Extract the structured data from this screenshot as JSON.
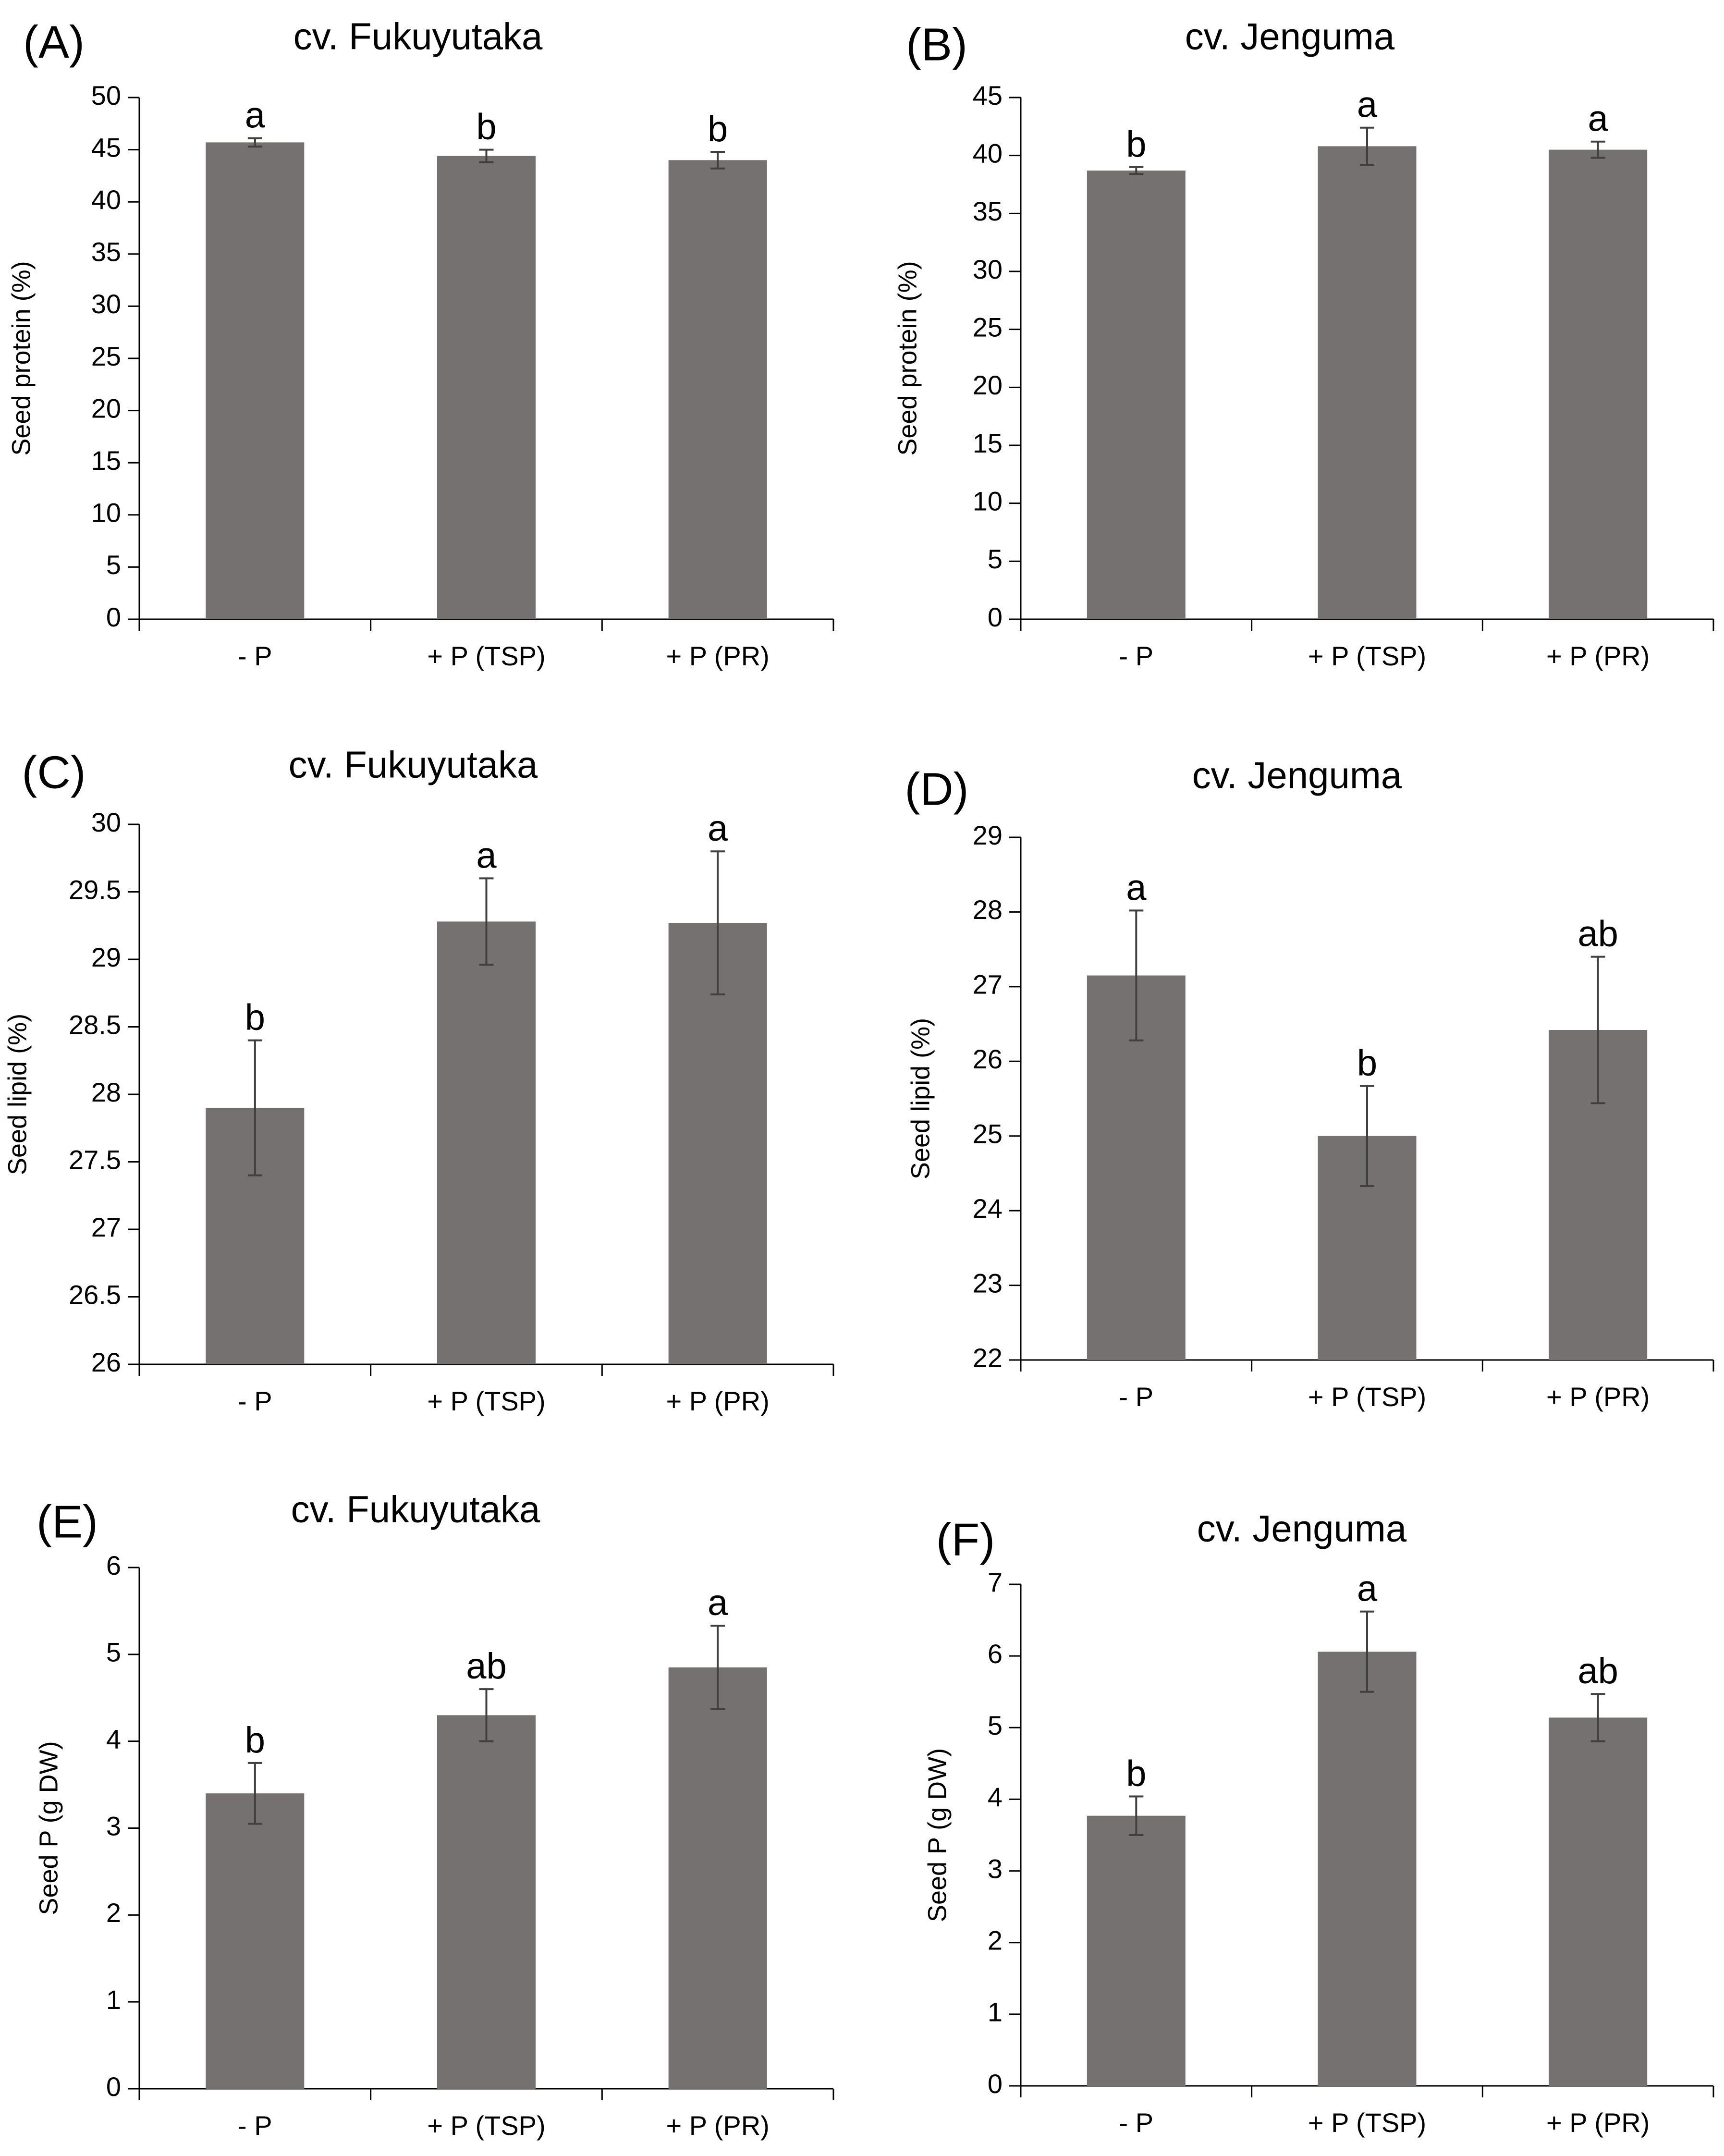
{
  "bar_color": "#767171",
  "axis_color": "#000000",
  "chart_data": [
    {
      "type": "bar",
      "panel_label": "(A)",
      "title": "cv. Fukuyutaka",
      "ylabel": "Seed protein (%)",
      "xlabel": "",
      "categories": [
        "- P",
        "+ P (TSP)",
        "+ P (PR)"
      ],
      "values": [
        45.7,
        44.4,
        44.0
      ],
      "errors": [
        0.4,
        0.6,
        0.8
      ],
      "letters": [
        "a",
        "b",
        "b"
      ],
      "ylim": [
        0,
        50
      ],
      "yticks": [
        0,
        5,
        10,
        15,
        20,
        25,
        30,
        35,
        40,
        45,
        50
      ],
      "ytick_labels": [
        "0",
        "5",
        "10",
        "15",
        "20",
        "25",
        "30",
        "35",
        "40",
        "45",
        "50"
      ]
    },
    {
      "type": "bar",
      "panel_label": "(B)",
      "title": "cv. Jenguma",
      "ylabel": "Seed protein (%)",
      "xlabel": "",
      "categories": [
        "- P",
        "+ P (TSP)",
        "+ P (PR)"
      ],
      "values": [
        38.7,
        40.8,
        40.5
      ],
      "errors": [
        0.3,
        1.6,
        0.7
      ],
      "letters": [
        "b",
        "a",
        "a"
      ],
      "ylim": [
        0,
        45
      ],
      "yticks": [
        0,
        5,
        10,
        15,
        20,
        25,
        30,
        35,
        40,
        45
      ],
      "ytick_labels": [
        "0",
        "5",
        "10",
        "15",
        "20",
        "25",
        "30",
        "35",
        "40",
        "45"
      ]
    },
    {
      "type": "bar",
      "panel_label": "(C)",
      "title": "cv. Fukuyutaka",
      "ylabel": "Seed lipid (%)",
      "xlabel": "",
      "categories": [
        "- P",
        "+ P (TSP)",
        "+ P (PR)"
      ],
      "values": [
        27.9,
        29.28,
        29.27
      ],
      "errors": [
        0.5,
        0.32,
        0.53
      ],
      "letters": [
        "b",
        "a",
        "a"
      ],
      "ylim": [
        26,
        30
      ],
      "yticks": [
        26,
        26.5,
        27,
        27.5,
        28,
        28.5,
        29,
        29.5,
        30
      ],
      "ytick_labels": [
        "26",
        "26.5",
        "27",
        "27.5",
        "28",
        "28.5",
        "29",
        "29.5",
        "30"
      ]
    },
    {
      "type": "bar",
      "panel_label": "(D)",
      "title": "cv. Jenguma",
      "ylabel": "Seed lipid (%)",
      "xlabel": "",
      "categories": [
        "- P",
        "+ P (TSP)",
        "+ P (PR)"
      ],
      "values": [
        27.15,
        25.0,
        26.42
      ],
      "errors": [
        0.87,
        0.67,
        0.98
      ],
      "letters": [
        "a",
        "b",
        "ab"
      ],
      "ylim": [
        22,
        29
      ],
      "yticks": [
        22,
        23,
        24,
        25,
        26,
        27,
        28,
        29
      ],
      "ytick_labels": [
        "22",
        "23",
        "24",
        "25",
        "26",
        "27",
        "28",
        "29"
      ]
    },
    {
      "type": "bar",
      "panel_label": "(E)",
      "title": "cv. Fukuyutaka",
      "ylabel": "Seed P (g DW)",
      "xlabel": "",
      "categories": [
        "- P",
        "+ P (TSP)",
        "+ P (PR)"
      ],
      "values": [
        3.4,
        4.3,
        4.85
      ],
      "errors": [
        0.35,
        0.3,
        0.48
      ],
      "letters": [
        "b",
        "ab",
        "a"
      ],
      "ylim": [
        0,
        6
      ],
      "yticks": [
        0,
        1,
        2,
        3,
        4,
        5,
        6
      ],
      "ytick_labels": [
        "0",
        "1",
        "2",
        "3",
        "4",
        "5",
        "6"
      ]
    },
    {
      "type": "bar",
      "panel_label": "(F)",
      "title": "cv. Jenguma",
      "ylabel": "Seed P (g DW)",
      "xlabel": "",
      "categories": [
        "- P",
        "+ P (TSP)",
        "+ P (PR)"
      ],
      "values": [
        3.77,
        6.06,
        5.14
      ],
      "errors": [
        0.27,
        0.56,
        0.33
      ],
      "letters": [
        "b",
        "a",
        "ab"
      ],
      "ylim": [
        0,
        7
      ],
      "yticks": [
        0,
        1,
        2,
        3,
        4,
        5,
        6,
        7
      ],
      "ytick_labels": [
        "0",
        "1",
        "2",
        "3",
        "4",
        "5",
        "6",
        "7"
      ]
    }
  ]
}
